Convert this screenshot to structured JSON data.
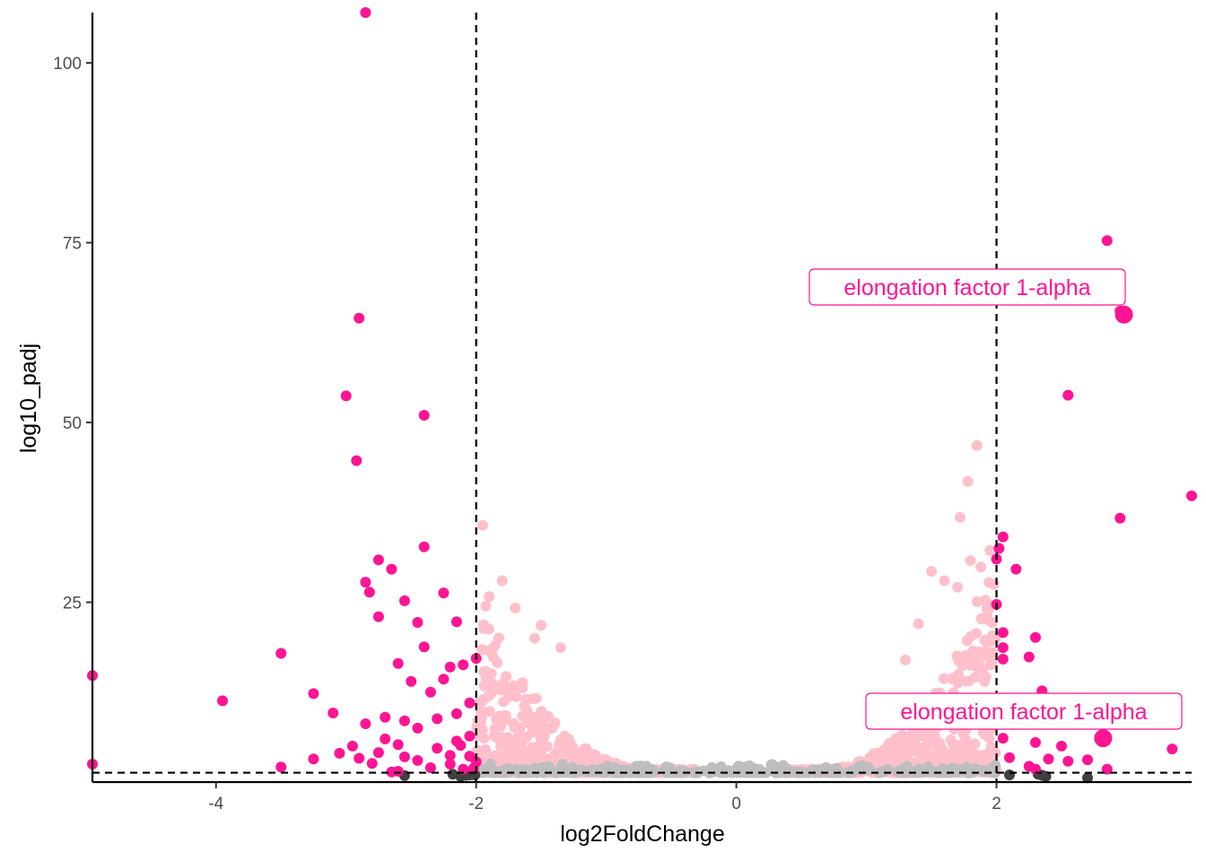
{
  "chart_data": {
    "type": "scatter",
    "title": "",
    "xlabel": "log2FoldChange",
    "ylabel": "log10_padj",
    "xlim": [
      -4.95,
      3.5
    ],
    "ylim": [
      0,
      107
    ],
    "x_ticks": [
      -4,
      -2,
      0,
      2
    ],
    "x_tick_labels": [
      "-4",
      "-2",
      "0",
      "2"
    ],
    "y_ticks": [
      25,
      50,
      75,
      100
    ],
    "y_tick_labels": [
      "25",
      "50",
      "75",
      "100"
    ],
    "grid": false,
    "legend": "none",
    "reference_lines": {
      "vertical_x": [
        -2,
        2
      ],
      "horizontal_y": [
        1.3
      ]
    },
    "colors": {
      "significant": "#ff1493",
      "large_fold_change_only": "#ffc0cb",
      "small_fold_change": "#bebebe",
      "not_significant": "#404040",
      "reference_line": "#000000"
    },
    "points_significant": [
      [
        -2.85,
        107
      ],
      [
        -2.9,
        64.5
      ],
      [
        -3.0,
        53.7
      ],
      [
        -2.4,
        51.0
      ],
      [
        -2.92,
        44.7
      ],
      [
        -2.4,
        32.7
      ],
      [
        -2.75,
        30.9
      ],
      [
        -2.65,
        29.6
      ],
      [
        -2.85,
        27.8
      ],
      [
        -2.82,
        26.4
      ],
      [
        -2.25,
        26.3
      ],
      [
        -2.55,
        25.2
      ],
      [
        -2.75,
        23.0
      ],
      [
        -2.45,
        22.2
      ],
      [
        -2.15,
        22.3
      ],
      [
        -4.95,
        14.8
      ],
      [
        -3.5,
        17.9
      ],
      [
        -3.95,
        11.3
      ],
      [
        -3.25,
        12.3
      ],
      [
        -3.1,
        9.6
      ],
      [
        -2.7,
        9.0
      ],
      [
        -2.55,
        8.5
      ],
      [
        -2.85,
        8.1
      ],
      [
        -2.6,
        16.5
      ],
      [
        -2.5,
        14.0
      ],
      [
        -2.4,
        18.8
      ],
      [
        -2.2,
        16.0
      ],
      [
        -2.1,
        16.3
      ],
      [
        -2.0,
        17.2
      ],
      [
        -2.25,
        14.3
      ],
      [
        -2.35,
        12.5
      ],
      [
        -2.05,
        11.0
      ],
      [
        -2.15,
        9.5
      ],
      [
        -2.3,
        8.8
      ],
      [
        -2.45,
        7.5
      ],
      [
        -2.7,
        6.0
      ],
      [
        -2.6,
        5.2
      ],
      [
        -2.95,
        5.0
      ],
      [
        -3.05,
        4.0
      ],
      [
        -2.9,
        3.3
      ],
      [
        -2.75,
        4.1
      ],
      [
        -2.55,
        3.5
      ],
      [
        -2.45,
        3.0
      ],
      [
        -2.3,
        4.7
      ],
      [
        -2.15,
        5.7
      ],
      [
        -2.05,
        6.4
      ],
      [
        -2.2,
        2.5
      ],
      [
        -2.35,
        2.0
      ],
      [
        -2.1,
        1.8
      ],
      [
        -2.0,
        2.8
      ],
      [
        -2.6,
        1.5
      ],
      [
        -2.8,
        2.6
      ],
      [
        -3.5,
        2.1
      ],
      [
        -3.25,
        3.2
      ],
      [
        -4.95,
        2.5
      ],
      [
        -2.2,
        3.7
      ],
      [
        -2.12,
        5.1
      ],
      [
        -2.05,
        3.6
      ],
      [
        -2.02,
        1.9
      ],
      [
        -2.65,
        1.4
      ],
      [
        2.85,
        75.3
      ],
      [
        2.95,
        65.5
      ],
      [
        2.95,
        36.7
      ],
      [
        2.55,
        53.8
      ],
      [
        3.5,
        39.8
      ],
      [
        2.05,
        34.1
      ],
      [
        2.02,
        32.5
      ],
      [
        2.0,
        31.0
      ],
      [
        2.15,
        29.6
      ],
      [
        2.0,
        24.7
      ],
      [
        2.05,
        20.8
      ],
      [
        2.05,
        18.7
      ],
      [
        2.25,
        17.4
      ],
      [
        2.3,
        20.1
      ],
      [
        2.05,
        17.1
      ],
      [
        2.35,
        12.7
      ],
      [
        2.15,
        8.4
      ],
      [
        2.05,
        6.1
      ],
      [
        2.3,
        5.5
      ],
      [
        2.4,
        3.2
      ],
      [
        2.55,
        2.9
      ],
      [
        2.7,
        3.1
      ],
      [
        2.25,
        2.2
      ],
      [
        2.3,
        1.8
      ],
      [
        2.85,
        1.8
      ],
      [
        3.35,
        4.6
      ],
      [
        2.1,
        3.4
      ],
      [
        2.5,
        5.0
      ]
    ],
    "labeled_points": [
      {
        "x": 2.98,
        "y": 65.0,
        "label": "elongation factor 1-alpha"
      },
      {
        "x": 2.82,
        "y": 6.1,
        "label": "elongation factor 1-alpha"
      }
    ],
    "points_not_significant": [
      [
        -2.55,
        0.9
      ],
      [
        -2.12,
        0.8
      ],
      [
        -2.08,
        0.95
      ],
      [
        -2.05,
        1.0
      ],
      [
        -2.18,
        1.1
      ],
      [
        -2.01,
        1.0
      ],
      [
        2.35,
        0.95
      ],
      [
        2.38,
        0.8
      ],
      [
        2.1,
        1.0
      ],
      [
        2.7,
        0.6
      ],
      [
        2.32,
        1.1
      ]
    ],
    "clouds": [
      {
        "category": "large_fold_change_only",
        "x_range": [
          -2.0,
          -0.3
        ],
        "peak_x": -2.0,
        "peak_y": 27,
        "count": 700
      },
      {
        "category": "large_fold_change_only",
        "x_range": [
          0.3,
          2.0
        ],
        "peak_x": 2.0,
        "peak_y": 30,
        "count": 700
      },
      {
        "category": "small_fold_change",
        "x_range": [
          -2.0,
          2.0
        ],
        "peak_x": 0,
        "peak_y": 1.3,
        "count": 300
      }
    ],
    "extra_pink_points": [
      [
        -1.95,
        35.7
      ],
      [
        -1.8,
        28.0
      ],
      [
        -1.7,
        24.2
      ],
      [
        -1.5,
        21.8
      ],
      [
        -1.35,
        18.7
      ],
      [
        -1.55,
        20.0
      ],
      [
        -1.9,
        25.8
      ],
      [
        1.85,
        46.8
      ],
      [
        1.78,
        41.8
      ],
      [
        1.72,
        36.8
      ],
      [
        1.95,
        32.2
      ],
      [
        1.8,
        30.8
      ],
      [
        1.88,
        29.9
      ],
      [
        1.98,
        27.5
      ],
      [
        1.5,
        29.3
      ],
      [
        1.6,
        28.0
      ],
      [
        1.7,
        27.1
      ],
      [
        1.85,
        25.1
      ],
      [
        1.4,
        22.0
      ],
      [
        1.3,
        17.0
      ]
    ]
  }
}
